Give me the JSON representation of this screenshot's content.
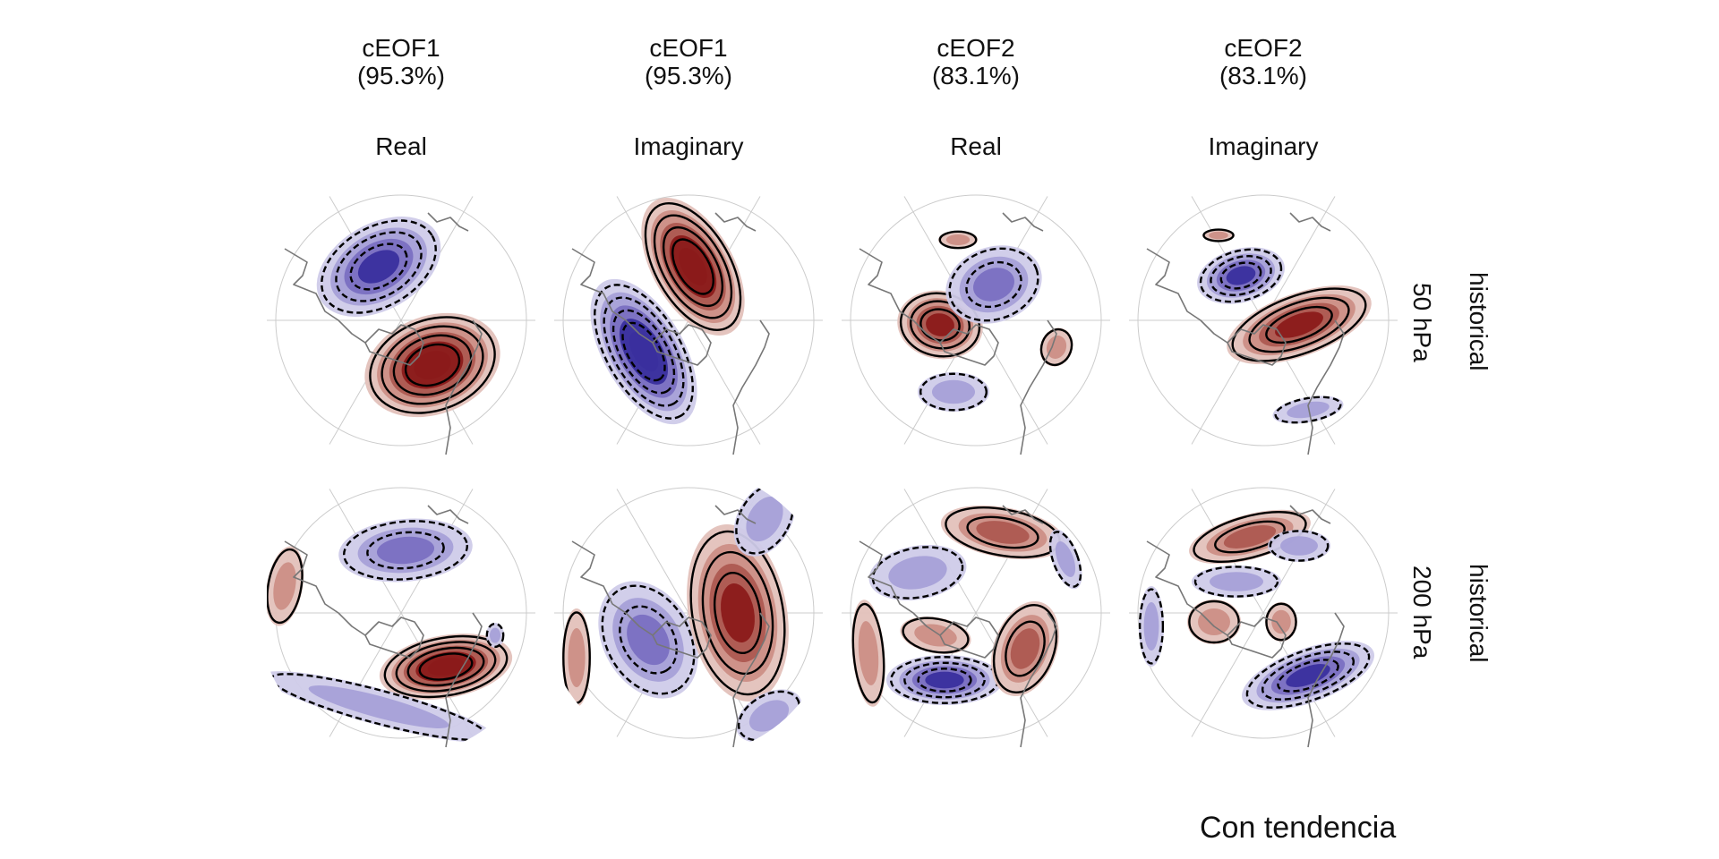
{
  "columns": [
    {
      "eof": "cEOF1",
      "variance": "(95.3%)",
      "part": "Real"
    },
    {
      "eof": "cEOF1",
      "variance": "(95.3%)",
      "part": "Imaginary"
    },
    {
      "eof": "cEOF2",
      "variance": "(83.1%)",
      "part": "Real"
    },
    {
      "eof": "cEOF2",
      "variance": "(83.1%)",
      "part": "Imaginary"
    }
  ],
  "rows": [
    {
      "level": "50 hPa",
      "experiment": "historical"
    },
    {
      "level": "200 hPa",
      "experiment": "historical"
    }
  ],
  "footer": "Con tendencia",
  "colors": {
    "positive": "#8b1a1a",
    "negative": "#3a2f9e",
    "coast": "#777777",
    "grid": "#cccccc"
  }
}
